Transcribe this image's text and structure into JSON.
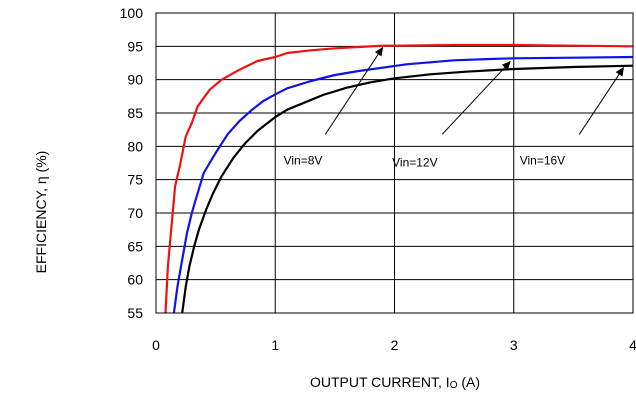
{
  "chart_data": {
    "type": "line",
    "xlabel": "OUTPUT CURRENT, I",
    "xlabel_sub": "O",
    "xlabel_unit": " (A)",
    "ylabel": "EFFICIENCY, η  (%)",
    "xlim": [
      0,
      4
    ],
    "ylim": [
      55,
      100
    ],
    "x_ticks": [
      "0",
      "1",
      "2",
      "3",
      "4"
    ],
    "y_ticks": [
      "55",
      "60",
      "65",
      "70",
      "75",
      "80",
      "85",
      "90",
      "95",
      "100"
    ],
    "grid": true,
    "series": [
      {
        "name": "Vin=8V",
        "color": "#ee1111",
        "points": [
          [
            0.08,
            55
          ],
          [
            0.1,
            62
          ],
          [
            0.13,
            68
          ],
          [
            0.16,
            74
          ],
          [
            0.2,
            77
          ],
          [
            0.25,
            81.5
          ],
          [
            0.3,
            83.5
          ],
          [
            0.35,
            86
          ],
          [
            0.45,
            88.5
          ],
          [
            0.55,
            90
          ],
          [
            0.7,
            91.5
          ],
          [
            0.85,
            92.8
          ],
          [
            1.0,
            93.4
          ],
          [
            1.1,
            94
          ],
          [
            1.3,
            94.4
          ],
          [
            1.5,
            94.7
          ],
          [
            1.7,
            94.9
          ],
          [
            1.9,
            95.1
          ],
          [
            2.0,
            95.1
          ],
          [
            2.5,
            95.2
          ],
          [
            3.0,
            95.2
          ],
          [
            3.5,
            95.1
          ],
          [
            4.0,
            95.0
          ]
        ]
      },
      {
        "name": "Vin=12V",
        "color": "#1111ee",
        "points": [
          [
            0.15,
            55
          ],
          [
            0.18,
            59
          ],
          [
            0.22,
            63
          ],
          [
            0.26,
            67
          ],
          [
            0.3,
            70
          ],
          [
            0.35,
            73
          ],
          [
            0.4,
            76
          ],
          [
            0.5,
            79
          ],
          [
            0.6,
            81.8
          ],
          [
            0.7,
            83.8
          ],
          [
            0.8,
            85.4
          ],
          [
            0.9,
            86.8
          ],
          [
            1.0,
            87.8
          ],
          [
            1.1,
            88.7
          ],
          [
            1.3,
            89.8
          ],
          [
            1.5,
            90.7
          ],
          [
            1.7,
            91.3
          ],
          [
            1.9,
            91.8
          ],
          [
            2.1,
            92.3
          ],
          [
            2.3,
            92.6
          ],
          [
            2.5,
            92.9
          ],
          [
            2.8,
            93.1
          ],
          [
            3.0,
            93.2
          ],
          [
            3.5,
            93.3
          ],
          [
            4.0,
            93.4
          ]
        ]
      },
      {
        "name": "Vin=16V",
        "color": "#000000",
        "points": [
          [
            0.22,
            55
          ],
          [
            0.25,
            59
          ],
          [
            0.28,
            62
          ],
          [
            0.32,
            65
          ],
          [
            0.36,
            67.5
          ],
          [
            0.42,
            70.5
          ],
          [
            0.48,
            73
          ],
          [
            0.55,
            75.5
          ],
          [
            0.65,
            78.3
          ],
          [
            0.75,
            80.5
          ],
          [
            0.85,
            82.3
          ],
          [
            1.0,
            84.4
          ],
          [
            1.1,
            85.5
          ],
          [
            1.25,
            86.6
          ],
          [
            1.4,
            87.7
          ],
          [
            1.6,
            88.8
          ],
          [
            1.8,
            89.6
          ],
          [
            2.0,
            90.2
          ],
          [
            2.3,
            90.8
          ],
          [
            2.6,
            91.2
          ],
          [
            3.0,
            91.6
          ],
          [
            3.5,
            91.9
          ],
          [
            4.0,
            92.1
          ]
        ]
      }
    ],
    "annotations": [
      {
        "label": "Vin=8V",
        "text_x": 1.07,
        "text_y": 77.3,
        "arrow_from": [
          1.42,
          81.8
        ],
        "arrow_to": [
          1.9,
          94.8
        ]
      },
      {
        "label": "Vin=12V",
        "text_x": 1.98,
        "text_y": 77.0,
        "arrow_from": [
          2.4,
          81.8
        ],
        "arrow_to": [
          2.97,
          92.7
        ]
      },
      {
        "label": "Vin=16V",
        "text_x": 3.05,
        "text_y": 77.3,
        "arrow_from": [
          3.55,
          81.8
        ],
        "arrow_to": [
          3.92,
          91.8
        ]
      }
    ]
  }
}
